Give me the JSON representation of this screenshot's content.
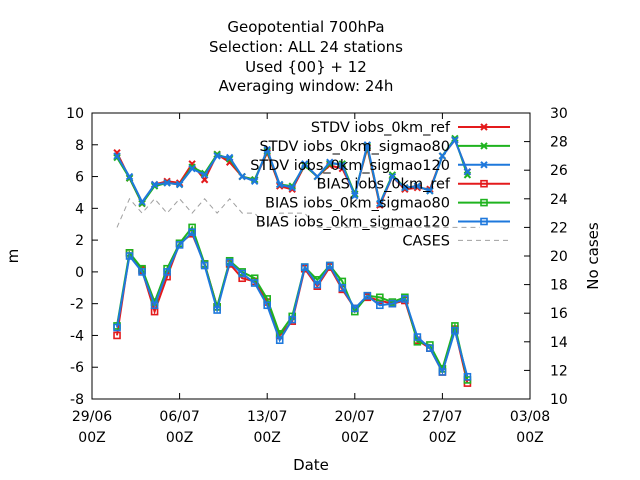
{
  "chart_data": {
    "type": "line",
    "title_lines": [
      "Geopotential 700hPa",
      "Selection: ALL     24 stations",
      "Used {00} + 12",
      "Averaging window: 24h"
    ],
    "xlabel": "Date",
    "ylabel": "m",
    "y2label": "No cases",
    "x_ticks": [
      {
        "day": -1,
        "line1": "29/06",
        "line2": "00Z"
      },
      {
        "day": 6,
        "line1": "06/07",
        "line2": "00Z"
      },
      {
        "day": 13,
        "line1": "13/07",
        "line2": "00Z"
      },
      {
        "day": 20,
        "line1": "20/07",
        "line2": "00Z"
      },
      {
        "day": 27,
        "line1": "27/07",
        "line2": "00Z"
      },
      {
        "day": 34,
        "line1": "03/08",
        "line2": "00Z"
      }
    ],
    "xlim": [
      -1,
      34
    ],
    "ylim": [
      -8,
      10
    ],
    "y_ticks": [
      "-8",
      "-6",
      "-4",
      "-2",
      "0",
      "2",
      "4",
      "6",
      "8",
      "10"
    ],
    "y2lim": [
      10,
      30
    ],
    "y2_ticks": [
      "10",
      "12",
      "14",
      "16",
      "18",
      "20",
      "22",
      "24",
      "26",
      "28",
      "30"
    ],
    "legend_position": "top-right",
    "x": [
      1,
      2,
      3,
      4,
      5,
      6,
      7,
      8,
      9,
      10,
      11,
      12,
      13,
      14,
      15,
      16,
      17,
      18,
      19,
      20,
      21,
      22,
      23,
      24,
      25,
      26,
      27,
      28,
      29,
      30
    ],
    "series": [
      {
        "name": "STDV iobs_0km_ref",
        "axis": "y1",
        "color": "#e41a1c",
        "marker": "x",
        "values": [
          7.5,
          5.9,
          4.3,
          5.5,
          5.7,
          5.6,
          6.8,
          5.8,
          7.4,
          6.9,
          6.0,
          5.8,
          7.5,
          5.4,
          5.2,
          6.7,
          6.0,
          6.7,
          6.5,
          4.9,
          7.8,
          4.2,
          6.0,
          5.2,
          5.3,
          5.2,
          7.3,
          8.3,
          6.3,
          null
        ]
      },
      {
        "name": "STDV iobs_0km_sigmao80",
        "axis": "y1",
        "color": "#1fb31f",
        "marker": "x",
        "values": [
          7.2,
          5.9,
          4.3,
          5.4,
          5.6,
          5.5,
          6.6,
          6.2,
          7.4,
          7.1,
          6.0,
          5.8,
          7.6,
          5.5,
          5.4,
          6.7,
          6.0,
          6.8,
          6.8,
          4.9,
          7.9,
          4.3,
          6.1,
          5.3,
          5.4,
          5.1,
          7.3,
          8.4,
          6.1,
          null
        ]
      },
      {
        "name": "STDV iobs_0km_sigmao120",
        "axis": "y1",
        "color": "#1e78dc",
        "marker": "x",
        "values": [
          7.3,
          6.0,
          4.4,
          5.5,
          5.6,
          5.5,
          6.5,
          6.1,
          7.3,
          7.2,
          6.0,
          5.7,
          7.7,
          5.5,
          5.3,
          6.8,
          6.0,
          6.9,
          6.7,
          4.8,
          8.0,
          4.3,
          6.0,
          5.3,
          5.4,
          5.1,
          7.3,
          8.3,
          6.3,
          null
        ]
      },
      {
        "name": "BIAS iobs_0km_ref",
        "axis": "y1",
        "color": "#e41a1c",
        "marker": "square",
        "values": [
          -4.0,
          1.2,
          0.1,
          -2.5,
          -0.3,
          1.8,
          2.4,
          0.5,
          -2.2,
          0.5,
          -0.4,
          -0.6,
          -1.9,
          -4.0,
          -3.1,
          0.2,
          -0.9,
          0.3,
          -1.1,
          -2.3,
          -1.6,
          -1.8,
          -2.0,
          -1.8,
          -4.3,
          -4.8,
          -6.3,
          -3.6,
          -7.0,
          null
        ]
      },
      {
        "name": "BIAS iobs_0km_sigmao80",
        "axis": "y1",
        "color": "#1fb31f",
        "marker": "square",
        "values": [
          -3.4,
          1.2,
          0.2,
          -1.9,
          0.2,
          1.8,
          2.8,
          0.5,
          -2.2,
          0.7,
          0.0,
          -0.4,
          -1.7,
          -3.9,
          -2.8,
          0.3,
          -0.5,
          0.4,
          -0.6,
          -2.5,
          -1.5,
          -1.6,
          -1.9,
          -1.6,
          -4.4,
          -4.6,
          -6.1,
          -3.4,
          -6.8,
          null
        ]
      },
      {
        "name": "BIAS iobs_0km_sigmao120",
        "axis": "y1",
        "color": "#1e78dc",
        "marker": "square",
        "values": [
          -3.5,
          1.0,
          0.0,
          -2.1,
          0.0,
          1.7,
          2.5,
          0.4,
          -2.4,
          0.6,
          -0.1,
          -0.7,
          -2.1,
          -4.3,
          -3.0,
          0.3,
          -0.8,
          0.4,
          -1.0,
          -2.3,
          -1.5,
          -2.1,
          -2.0,
          -1.7,
          -4.1,
          -4.8,
          -6.3,
          -3.7,
          -6.6,
          null
        ]
      },
      {
        "name": "CASES",
        "axis": "y2",
        "color": "#a0a0a0",
        "marker": "none",
        "dashed": true,
        "values": [
          22,
          24,
          23,
          24,
          23,
          24,
          23,
          24,
          23,
          24,
          23,
          23,
          22,
          23,
          23,
          23,
          22,
          22,
          22,
          22,
          22,
          22,
          22,
          22,
          22,
          22,
          22,
          22,
          22,
          22
        ]
      }
    ]
  }
}
